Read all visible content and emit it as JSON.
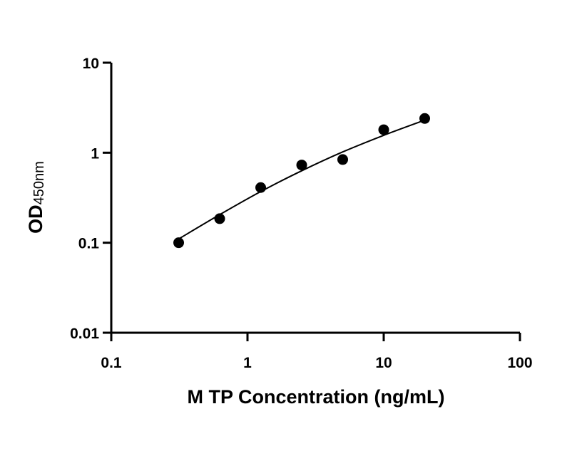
{
  "chart_data": {
    "type": "scatter",
    "title": "",
    "xlabel": "M TP Concentration (ng/mL)",
    "ylabel": {
      "main": "OD",
      "subscript": "450nm"
    },
    "x_scale": "log",
    "y_scale": "log",
    "xlim": [
      0.1,
      100
    ],
    "ylim": [
      0.01,
      10
    ],
    "x_ticks": [
      0.1,
      1,
      10,
      100
    ],
    "x_tick_labels": [
      "0.1",
      "1",
      "10",
      "100"
    ],
    "y_ticks": [
      0.01,
      0.1,
      1,
      10
    ],
    "y_tick_labels": [
      "0.01",
      "0.1",
      "1",
      "10"
    ],
    "grid": false,
    "legend": "none",
    "series": [
      {
        "points": [
          {
            "x": 0.3125,
            "y": 0.1
          },
          {
            "x": 0.625,
            "y": 0.185
          },
          {
            "x": 1.25,
            "y": 0.41
          },
          {
            "x": 2.5,
            "y": 0.73
          },
          {
            "x": 5,
            "y": 0.84
          },
          {
            "x": 10,
            "y": 1.8
          },
          {
            "x": 20,
            "y": 2.4
          }
        ],
        "fit_curve": [
          {
            "x": 0.3125,
            "y": 0.11
          },
          {
            "x": 0.625,
            "y": 0.205
          },
          {
            "x": 1.25,
            "y": 0.37
          },
          {
            "x": 2.5,
            "y": 0.63
          },
          {
            "x": 5,
            "y": 1.02
          },
          {
            "x": 10,
            "y": 1.56
          },
          {
            "x": 20,
            "y": 2.3
          }
        ],
        "color": "#000000"
      }
    ]
  }
}
